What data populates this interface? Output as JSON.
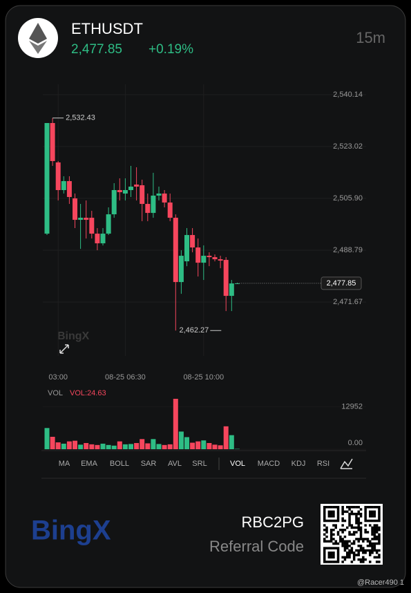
{
  "header": {
    "symbol": "ETHUSDT",
    "price": "2,477.85",
    "change": "+0.19%",
    "interval": "15m"
  },
  "chart_data": [
    {
      "type": "candlestick",
      "watermark": "BingX",
      "categories": [
        null,
        null,
        "03:00",
        null,
        null,
        null,
        null,
        null,
        null,
        null,
        null,
        null,
        null,
        null,
        "08-25 06:30",
        null,
        null,
        null,
        null,
        null,
        null,
        null,
        null,
        null,
        null,
        null,
        null,
        null,
        "08-25 10:00",
        null,
        null,
        null,
        null,
        null,
        null
      ],
      "open": [
        2494.25,
        2530.78,
        2517.77,
        2508.64,
        2511.6,
        2505.89,
        2498.82,
        2499.5,
        2499.5,
        2494.25,
        2491.06,
        2494.25,
        2500.64,
        2508.64,
        2507.49,
        2508.64,
        2510.46,
        2510.23,
        2504.07,
        2501.1,
        2506.81,
        2507.49,
        2504.53,
        2499.5,
        2478.27,
        2485.12,
        2493.8,
        2489.69,
        2484.66,
        2486.95,
        2486.49,
        2485.8,
        2485.58,
        2473.71,
        2477.81
      ],
      "high": [
        2530.78,
        2532.43,
        2518.22,
        2513.2,
        2513.2,
        2507.49,
        2504.07,
        2505.21,
        2501.79,
        2496.08,
        2496.08,
        2502.93,
        2510.92,
        2512.52,
        2512.52,
        2516.63,
        2516.17,
        2512.06,
        2507.49,
        2514.34,
        2509.78,
        2508.64,
        2507.49,
        2500.64,
        2488.77,
        2496.08,
        2496.08,
        2492.65,
        2490.37,
        2488.09,
        2487.4,
        2486.95,
        2486.49,
        2478.96,
        2478.04
      ],
      "low": [
        2493.8,
        2516.63,
        2505.21,
        2507.49,
        2504.07,
        2496.08,
        2489.23,
        2492.65,
        2492.65,
        2488.77,
        2490.37,
        2493.8,
        2499.5,
        2505.21,
        2505.21,
        2506.35,
        2505.21,
        2498.36,
        2498.36,
        2499.5,
        2505.21,
        2502.93,
        2498.36,
        2462.27,
        2474.39,
        2483.52,
        2488.09,
        2480.1,
        2478.96,
        2483.52,
        2485.12,
        2482.84,
        2468.68,
        2468.68,
        2477.81
      ],
      "close": [
        2530.78,
        2518.22,
        2508.64,
        2511.6,
        2506.35,
        2498.82,
        2499.5,
        2498.82,
        2494.25,
        2491.06,
        2494.25,
        2500.64,
        2508.64,
        2507.95,
        2508.64,
        2509.78,
        2509.78,
        2504.07,
        2501.1,
        2506.81,
        2507.49,
        2504.53,
        2499.5,
        2478.27,
        2486.95,
        2493.8,
        2489.69,
        2484.66,
        2486.95,
        2486.49,
        2485.8,
        2485.35,
        2473.71,
        2477.81,
        2477.85
      ],
      "up_color": "#2ebd85",
      "down_color": "#f6465d",
      "ylim": [
        2453.87,
        2543.56
      ],
      "yticks": [
        {
          "value": 2540.14,
          "label": "2,540.14"
        },
        {
          "value": 2523.02,
          "label": "2,523.02"
        },
        {
          "value": 2505.9,
          "label": "2,505.90"
        },
        {
          "value": 2488.79,
          "label": "2,488.79"
        },
        {
          "value": 2471.67,
          "label": "2,471.67"
        }
      ],
      "max_label": {
        "value": 2532.43,
        "label": "2,532.43"
      },
      "min_label": {
        "value": 2462.27,
        "label": "2,462.27"
      },
      "last_label": {
        "value": 2477.85,
        "label": "2,477.85"
      },
      "grid": true
    },
    {
      "type": "bar",
      "title": "VOL",
      "subtitle": "VOL:24.63",
      "subtitle_color": "#f6465d",
      "values": [
        6480,
        3800,
        2100,
        1700,
        2400,
        2600,
        1400,
        1900,
        1500,
        1300,
        1700,
        1300,
        1100,
        2400,
        1500,
        1600,
        1900,
        3100,
        1800,
        3100,
        1600,
        1300,
        1500,
        15400,
        5400,
        3700,
        2000,
        2400,
        2700,
        1900,
        1400,
        1200,
        7000,
        4300,
        100
      ],
      "ylim": [
        0,
        15830
      ],
      "yticks": [
        12952,
        {
          "value": 0,
          "label": "0.00"
        }
      ]
    }
  ],
  "tabs": [
    "MA",
    "EMA",
    "BOLL",
    "SAR",
    "AVL",
    "SRL",
    "VOL",
    "MACD",
    "KDJ",
    "RSI"
  ],
  "active_tab": "VOL",
  "footer": {
    "brand": "BingX",
    "referral_code": "RBC2PG",
    "referral_label": "Referral Code",
    "user": "@Racer490 1"
  }
}
